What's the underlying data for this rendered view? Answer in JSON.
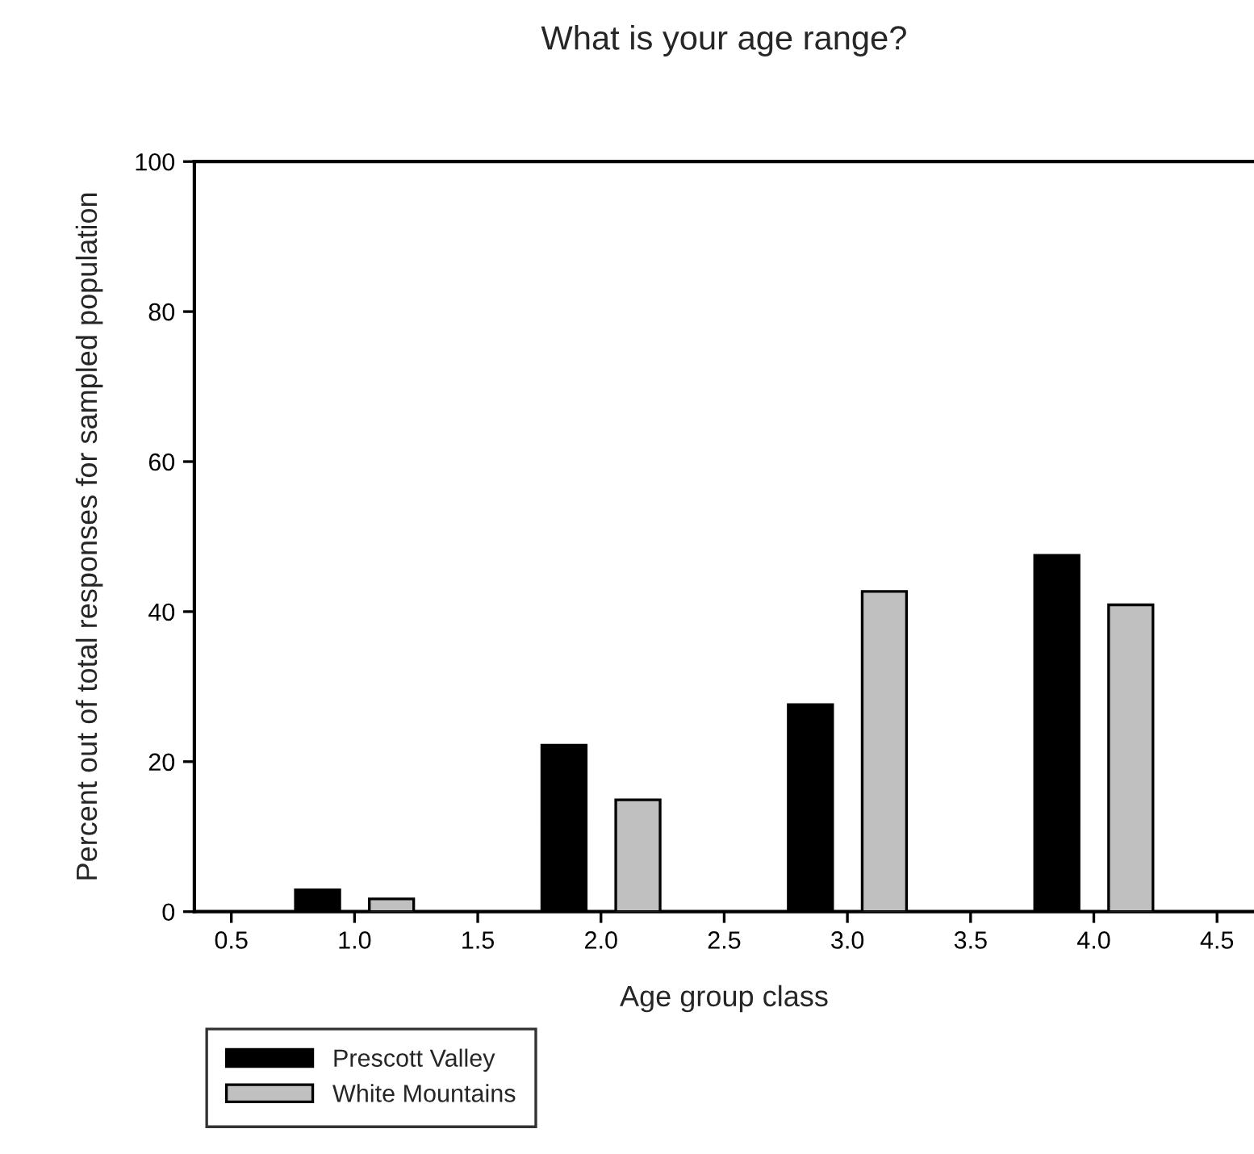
{
  "chart_data": {
    "type": "bar",
    "title": "What is your age range?",
    "xlabel": "Age group class",
    "ylabel": "Percent out of total responses for sampled population",
    "series": [
      {
        "name": "Prescott Valley",
        "color": "#000000",
        "x": [
          0.85,
          1.85,
          2.85,
          3.85
        ],
        "values": [
          2.9,
          22.2,
          27.6,
          47.5
        ]
      },
      {
        "name": "White Mountains",
        "color": "#c0c0c0",
        "x": [
          1.15,
          2.15,
          3.15,
          4.15
        ],
        "values": [
          1.7,
          14.9,
          42.7,
          40.9
        ]
      }
    ],
    "xlim": [
      0.35,
      4.65
    ],
    "xticks": [
      {
        "value": 0.5,
        "label": "0.5"
      },
      {
        "value": 1,
        "label": "1.0"
      },
      {
        "value": 1.5,
        "label": "1.5"
      },
      {
        "value": 2,
        "label": "2.0"
      },
      {
        "value": 2.5,
        "label": "2.5"
      },
      {
        "value": 3,
        "label": "3.0"
      },
      {
        "value": 3.5,
        "label": "3.5"
      },
      {
        "value": 4,
        "label": "4.0"
      },
      {
        "value": 4.5,
        "label": "4.5"
      }
    ],
    "ylim": [
      0,
      100
    ],
    "yticks": [
      0,
      20,
      40,
      60,
      80,
      100
    ],
    "grid": false,
    "legend": "bottom left"
  }
}
